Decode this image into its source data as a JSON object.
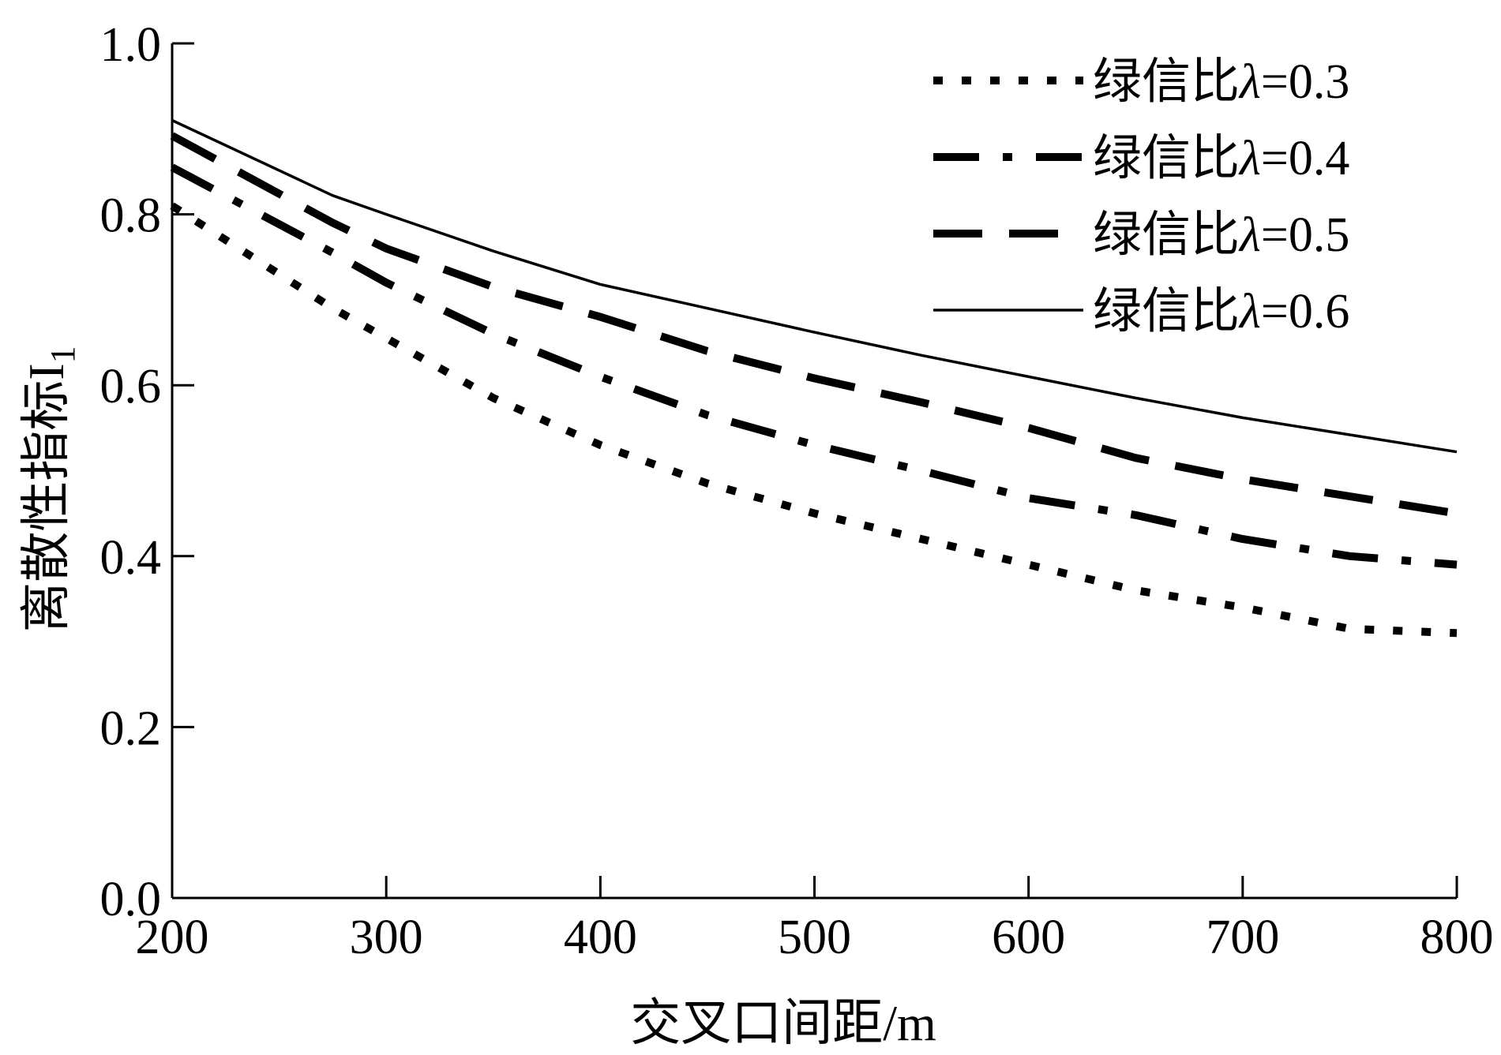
{
  "chart_data": {
    "type": "line",
    "xlabel": "交叉口间距/m",
    "ylabel": "离散性指标I",
    "ylabel_subscript": "1",
    "xlim": [
      200,
      800
    ],
    "ylim": [
      0,
      1.0
    ],
    "xticks": [
      200,
      300,
      400,
      500,
      600,
      700,
      800
    ],
    "xtick_labels": [
      "200",
      "300",
      "400",
      "500",
      "600",
      "700",
      "800"
    ],
    "yticks": [
      0,
      0.2,
      0.4,
      0.6,
      0.8,
      1.0
    ],
    "ytick_labels": [
      "0.0",
      "0.2",
      "0.4",
      "0.6",
      "0.8",
      "1.0"
    ],
    "grid": false,
    "legend_position": "top-right",
    "x": [
      200,
      275,
      300,
      350,
      400,
      450,
      500,
      550,
      600,
      650,
      700,
      750,
      800
    ],
    "series": [
      {
        "name_prefix": "绿信比",
        "name_symbol": "λ",
        "name_value": "=0.3",
        "style": "dotted",
        "values": [
          0.81,
          0.69,
          0.655,
          0.585,
          0.53,
          0.485,
          0.45,
          0.42,
          0.39,
          0.36,
          0.34,
          0.315,
          0.31
        ]
      },
      {
        "name_prefix": "绿信比",
        "name_symbol": "λ",
        "name_value": "=0.4",
        "style": "dash-dot",
        "values": [
          0.855,
          0.755,
          0.72,
          0.66,
          0.61,
          0.565,
          0.53,
          0.5,
          0.468,
          0.448,
          0.42,
          0.4,
          0.39
        ]
      },
      {
        "name_prefix": "绿信比",
        "name_symbol": "λ",
        "name_value": "=0.5",
        "style": "dashed",
        "values": [
          0.892,
          0.79,
          0.76,
          0.715,
          0.68,
          0.64,
          0.608,
          0.58,
          0.55,
          0.515,
          0.49,
          0.47,
          0.45
        ]
      },
      {
        "name_prefix": "绿信比",
        "name_symbol": "λ",
        "name_value": "=0.6",
        "style": "solid",
        "values": [
          0.91,
          0.822,
          0.8,
          0.757,
          0.718,
          0.69,
          0.662,
          0.635,
          0.61,
          0.585,
          0.562,
          0.542,
          0.522
        ]
      }
    ]
  }
}
